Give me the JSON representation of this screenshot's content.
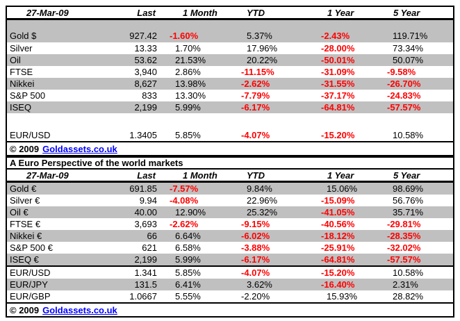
{
  "colors": {
    "row_stripe": "#C0C0C0",
    "negative_red": "#FF0000",
    "link_blue": "#0000FF"
  },
  "footer": {
    "copyright": "© 2009",
    "link_text": "Goldassets.co.uk"
  },
  "table1": {
    "header": [
      "27-Mar-09",
      "Last",
      "1 Month",
      "YTD",
      "1 Year",
      "5 Year"
    ],
    "rows": [
      {
        "label": "Gold $",
        "last": "927.42",
        "pcts": [
          {
            "t": "-1.60%",
            "red": true
          },
          {
            "t": "5.37%",
            "red": false
          },
          {
            "t": "-2.43%",
            "red": true
          },
          {
            "t": "119.71%",
            "red": false
          }
        ]
      },
      {
        "label": "Silver",
        "last": "13.33",
        "pcts": [
          {
            "t": "1.70%",
            "red": false
          },
          {
            "t": "17.96%",
            "red": false
          },
          {
            "t": "-28.00%",
            "red": true
          },
          {
            "t": "73.34%",
            "red": false
          }
        ]
      },
      {
        "label": "Oil",
        "last": "53.62",
        "pcts": [
          {
            "t": "21.53%",
            "red": false
          },
          {
            "t": "20.22%",
            "red": false
          },
          {
            "t": "-50.01%",
            "red": true
          },
          {
            "t": "50.07%",
            "red": false
          }
        ]
      },
      {
        "label": "FTSE",
        "last": "3,940",
        "pcts": [
          {
            "t": "2.86%",
            "red": false
          },
          {
            "t": "-11.15%",
            "red": true
          },
          {
            "t": "-31.09%",
            "red": true
          },
          {
            "t": "-9.58%",
            "red": true
          }
        ]
      },
      {
        "label": "Nikkei",
        "last": "8,627",
        "pcts": [
          {
            "t": "13.98%",
            "red": false
          },
          {
            "t": "-2.62%",
            "red": true
          },
          {
            "t": "-31.55%",
            "red": true
          },
          {
            "t": "-26.70%",
            "red": true
          }
        ]
      },
      {
        "label": "S&P 500",
        "last": "833",
        "pcts": [
          {
            "t": "13.30%",
            "red": false
          },
          {
            "t": "-7.79%",
            "red": true
          },
          {
            "t": "-37.17%",
            "red": true
          },
          {
            "t": "-24.83%",
            "red": true
          }
        ]
      },
      {
        "label": "ISEQ",
        "last": "2,199",
        "pcts": [
          {
            "t": "5.99%",
            "red": false
          },
          {
            "t": "-6.17%",
            "red": true
          },
          {
            "t": "-64.81%",
            "red": true
          },
          {
            "t": "-57.57%",
            "red": true
          }
        ]
      },
      {
        "label": "EUR/USD",
        "last": "1.3405",
        "pcts": [
          {
            "t": "5.85%",
            "red": false
          },
          {
            "t": "-4.07%",
            "red": true
          },
          {
            "t": "-15.20%",
            "red": true
          },
          {
            "t": "10.58%",
            "red": false
          }
        ]
      }
    ]
  },
  "table2": {
    "title": "A Euro Perspective of the world markets",
    "header": [
      "27-Mar-09",
      "Last",
      "1 Month",
      "YTD",
      "1 Year",
      "5 Year"
    ],
    "rows": [
      {
        "label": "Gold €",
        "last": "691.85",
        "pcts": [
          {
            "t": "-7.57%",
            "red": true
          },
          {
            "t": "9.84%",
            "red": false
          },
          {
            "t": "15.06%",
            "red": false
          },
          {
            "t": "98.69%",
            "red": false
          }
        ]
      },
      {
        "label": "Silver €",
        "last": "9.94",
        "pcts": [
          {
            "t": "-4.08%",
            "red": true
          },
          {
            "t": "22.96%",
            "red": false
          },
          {
            "t": "-15.09%",
            "red": true
          },
          {
            "t": "56.76%",
            "red": false
          }
        ]
      },
      {
        "label": "Oil €",
        "last": "40.00",
        "pcts": [
          {
            "t": "12.90%",
            "red": false
          },
          {
            "t": "25.32%",
            "red": false
          },
          {
            "t": "-41.05%",
            "red": true
          },
          {
            "t": "35.71%",
            "red": false
          }
        ]
      },
      {
        "label": "FTSE €",
        "last": "3,693",
        "pcts": [
          {
            "t": "-2.62%",
            "red": true
          },
          {
            "t": "-9.15%",
            "red": true
          },
          {
            "t": "-40.56%",
            "red": true
          },
          {
            "t": "-29.81%",
            "red": true
          }
        ]
      },
      {
        "label": "Nikkei €",
        "last": "66",
        "pcts": [
          {
            "t": "6.64%",
            "red": false
          },
          {
            "t": "-6.02%",
            "red": true
          },
          {
            "t": "-18.12%",
            "red": true
          },
          {
            "t": "-28.35%",
            "red": true
          }
        ]
      },
      {
        "label": "S&P 500 €",
        "last": "621",
        "pcts": [
          {
            "t": "6.58%",
            "red": false
          },
          {
            "t": "-3.88%",
            "red": true
          },
          {
            "t": "-25.91%",
            "red": true
          },
          {
            "t": "-32.02%",
            "red": true
          }
        ]
      },
      {
        "label": "ISEQ €",
        "last": "2,199",
        "pcts": [
          {
            "t": "5.99%",
            "red": false
          },
          {
            "t": "-6.17%",
            "red": true
          },
          {
            "t": "-64.81%",
            "red": true
          },
          {
            "t": "-57.57%",
            "red": true
          }
        ]
      },
      {
        "label": "EUR/USD",
        "last": "1.341",
        "pcts": [
          {
            "t": "5.85%",
            "red": false
          },
          {
            "t": "-4.07%",
            "red": true
          },
          {
            "t": "-15.20%",
            "red": true
          },
          {
            "t": "10.58%",
            "red": false
          }
        ]
      },
      {
        "label": "EUR/JPY",
        "last": "131.5",
        "pcts": [
          {
            "t": "6.41%",
            "red": false
          },
          {
            "t": "3.62%",
            "red": false
          },
          {
            "t": "-16.40%",
            "red": true
          },
          {
            "t": "2.31%",
            "red": false
          }
        ]
      },
      {
        "label": "EUR/GBP",
        "last": "1.0667",
        "pcts": [
          {
            "t": "5.55%",
            "red": false
          },
          {
            "t": "-2.20%",
            "red": false
          },
          {
            "t": "15.93%",
            "red": false
          },
          {
            "t": "28.82%",
            "red": false
          }
        ]
      }
    ]
  }
}
